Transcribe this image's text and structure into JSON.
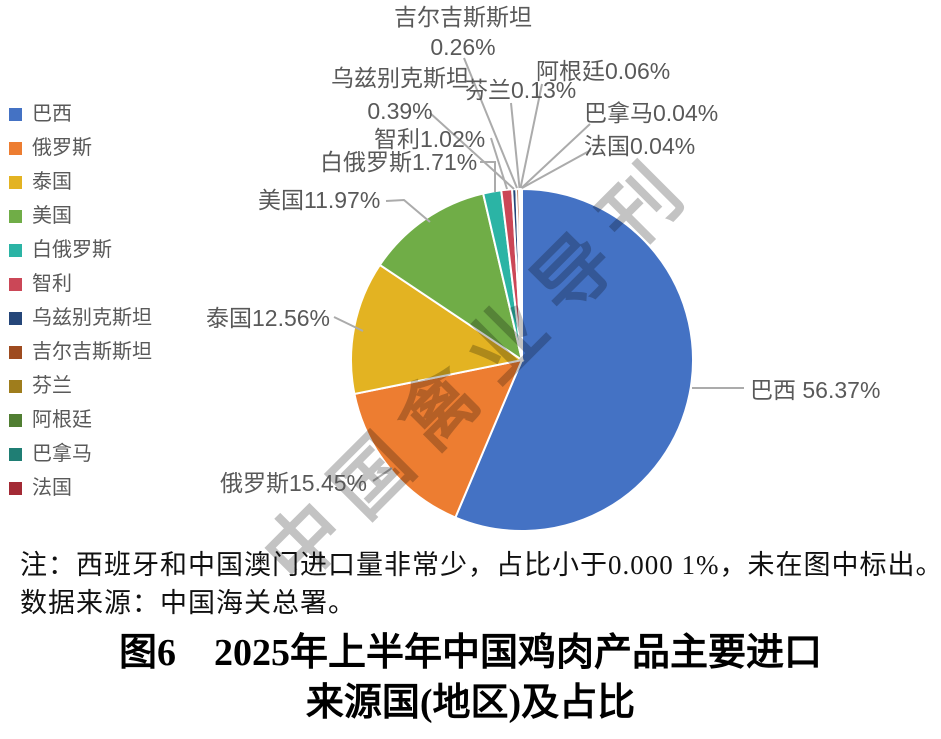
{
  "chart_data": {
    "type": "pie",
    "title": "图6　2025年上半年中国鸡肉产品主要进口来源国(地区)及占比",
    "unit": "%",
    "slices": [
      {
        "name": "巴西",
        "value": 56.37,
        "color": "#4472C4",
        "label_text": "巴西 56.37%"
      },
      {
        "name": "俄罗斯",
        "value": 15.45,
        "color": "#ED7D31",
        "label_text": "俄罗斯15.45%"
      },
      {
        "name": "泰国",
        "value": 12.56,
        "color": "#E3B322",
        "label_text": "泰国12.56%"
      },
      {
        "name": "美国",
        "value": 11.97,
        "color": "#70AD47",
        "label_text": "美国11.97%"
      },
      {
        "name": "白俄罗斯",
        "value": 1.71,
        "color": "#2BB4A5",
        "label_text": "白俄罗斯1.71%"
      },
      {
        "name": "智利",
        "value": 1.02,
        "color": "#CB4757",
        "label_text": "智利1.02%"
      },
      {
        "name": "乌兹别克斯坦",
        "value": 0.39,
        "color": "#254679",
        "label_text": "乌兹别克斯坦|0.39%"
      },
      {
        "name": "吉尔吉斯斯坦",
        "value": 0.26,
        "color": "#9E4B1F",
        "label_text": "吉尔吉斯斯坦|0.26%"
      },
      {
        "name": "芬兰",
        "value": 0.13,
        "color": "#9F7D1C",
        "label_text": "芬兰0.13%"
      },
      {
        "name": "阿根廷",
        "value": 0.06,
        "color": "#507E32",
        "label_text": "阿根廷0.06%"
      },
      {
        "name": "巴拿马",
        "value": 0.04,
        "color": "#1F7E74",
        "label_text": "巴拿马0.04%"
      },
      {
        "name": "法国",
        "value": 0.04,
        "color": "#A32A35",
        "label_text": "法国0.04%"
      }
    ],
    "legend_position": "left",
    "label_color": "#595959",
    "leader_line_color": "#ABABAB",
    "slice_border_color": "#FFFFFF"
  },
  "watermark": {
    "text": "中国禽业导刊"
  },
  "note": {
    "line1": "注：西班牙和中国澳门进口量非常少，占比小于0.000 1%，未在图中标出。",
    "line2": "数据来源：中国海关总署。"
  },
  "caption": {
    "line1": "图6　2025年上半年中国鸡肉产品主要进口",
    "line2": "来源国(地区)及占比"
  }
}
